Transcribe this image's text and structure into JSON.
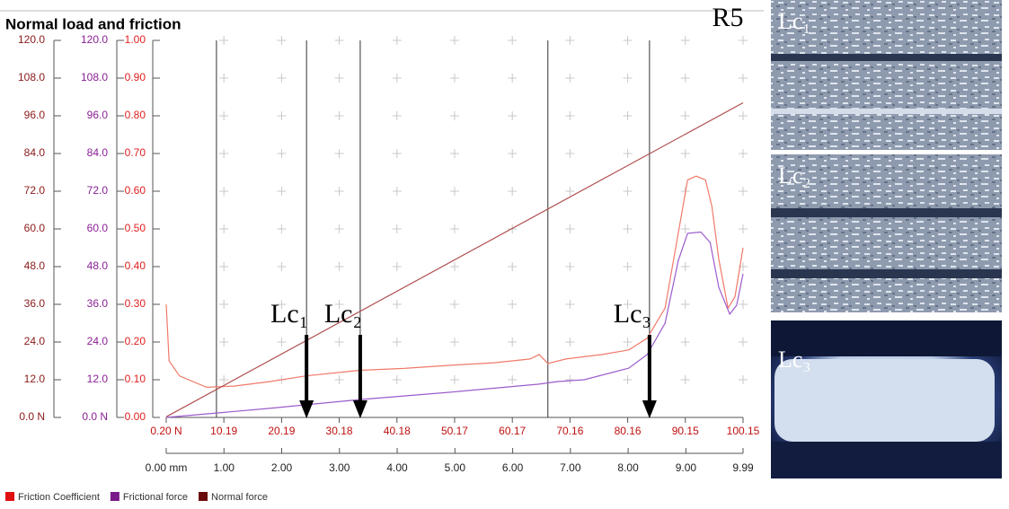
{
  "chart_data": {
    "type": "line",
    "title": "Normal load and friction",
    "sample_label": "R5",
    "xlim": [
      0,
      9.99
    ],
    "xticks": [
      {
        "value": 0,
        "label": "0.00 mm"
      },
      {
        "value": 1,
        "label": "1.00"
      },
      {
        "value": 2,
        "label": "2.00"
      },
      {
        "value": 3,
        "label": "3.00"
      },
      {
        "value": 4,
        "label": "4.00"
      },
      {
        "value": 5,
        "label": "5.00"
      },
      {
        "value": 6,
        "label": "6.00"
      },
      {
        "value": 7,
        "label": "7.00"
      },
      {
        "value": 8,
        "label": "8.00"
      },
      {
        "value": 9,
        "label": "9.00"
      },
      9.99
    ],
    "x2lim": [
      0.2,
      100.15
    ],
    "x2ticks": [
      {
        "value": 0.2,
        "label": "0.20 N"
      },
      10.19,
      20.19,
      30.18,
      40.18,
      50.17,
      60.17,
      70.16,
      80.16,
      90.15,
      100.15
    ],
    "ylim": [
      0,
      120
    ],
    "yticks": [
      {
        "value": 0,
        "label": "0.0 N"
      },
      {
        "value": 12,
        "label": "12.0"
      },
      {
        "value": 24,
        "label": "24.0"
      },
      {
        "value": 36,
        "label": "36.0"
      },
      {
        "value": 48,
        "label": "48.0"
      },
      {
        "value": 60,
        "label": "60.0"
      },
      {
        "value": 72,
        "label": "72.0"
      },
      {
        "value": 84,
        "label": "84.0"
      },
      {
        "value": 96,
        "label": "96.0"
      },
      {
        "value": 108,
        "label": "108.0"
      },
      {
        "value": 120,
        "label": "120.0"
      }
    ],
    "y_color": "#8b1a1a",
    "y2lim": [
      0,
      120
    ],
    "y2ticks": [
      {
        "value": 0,
        "label": "0.0 N"
      },
      {
        "value": 12,
        "label": "12.0"
      },
      {
        "value": 24,
        "label": "24.0"
      },
      {
        "value": 36,
        "label": "36.0"
      },
      {
        "value": 48,
        "label": "48.0"
      },
      {
        "value": 60,
        "label": "60.0"
      },
      {
        "value": 72,
        "label": "72.0"
      },
      {
        "value": 84,
        "label": "84.0"
      },
      {
        "value": 96,
        "label": "96.0"
      },
      {
        "value": 108,
        "label": "108.0"
      },
      {
        "value": 120,
        "label": "120.0"
      }
    ],
    "y2_color": "#8a1f96",
    "y3lim": [
      0,
      1
    ],
    "y3ticks": [
      {
        "value": 0,
        "label": "0.00"
      },
      {
        "value": 0.1,
        "label": "0.10"
      },
      {
        "value": 0.2,
        "label": "0.20"
      },
      {
        "value": 0.3,
        "label": "0.30"
      },
      {
        "value": 0.4,
        "label": "0.40"
      },
      {
        "value": 0.5,
        "label": "0.50"
      },
      {
        "value": 0.6,
        "label": "0.60"
      },
      {
        "value": 0.7,
        "label": "0.70"
      },
      {
        "value": 0.8,
        "label": "0.80"
      },
      {
        "value": 0.9,
        "label": "0.90"
      },
      {
        "value": 1,
        "label": "1.00"
      }
    ],
    "y3_color": "#e02020",
    "grid": "cross",
    "series": [
      {
        "name": "Friction Coefficient",
        "color": "#f07a6a",
        "legend_color": "#e01010",
        "axis": "y3",
        "x": [
          0,
          0.05,
          0.23,
          0.7,
          1.17,
          1.79,
          2.41,
          3.35,
          4.12,
          4.9,
          5.68,
          6.3,
          6.46,
          6.61,
          6.92,
          7.55,
          8.01,
          8.33,
          8.64,
          8.87,
          9.03,
          9.18,
          9.34,
          9.45,
          9.57,
          9.73,
          9.85,
          9.99
        ],
        "values": [
          0.3,
          0.15,
          0.11,
          0.08,
          0.083,
          0.095,
          0.11,
          0.125,
          0.13,
          0.138,
          0.145,
          0.155,
          0.167,
          0.143,
          0.155,
          0.167,
          0.179,
          0.21,
          0.29,
          0.49,
          0.63,
          0.64,
          0.63,
          0.56,
          0.42,
          0.29,
          0.32,
          0.45
        ]
      },
      {
        "name": "Frictional force",
        "color": "#9a5ccc",
        "legend_color": "#7a1a8a",
        "axis": "y2",
        "x": [
          0,
          1.79,
          3.35,
          4.9,
          6.46,
          6.77,
          7.24,
          8.01,
          8.33,
          8.64,
          8.87,
          9.03,
          9.26,
          9.42,
          9.57,
          9.76,
          9.88,
          9.99
        ],
        "values": [
          0,
          2.9,
          5.7,
          8.0,
          10.6,
          11.4,
          12.0,
          15.7,
          20.0,
          30.0,
          50.0,
          58.6,
          59.0,
          55.7,
          41.4,
          32.9,
          35.7,
          45.7
        ]
      },
      {
        "name": "Normal force",
        "color": "#b05050",
        "legend_color": "#6a0a0a",
        "axis": "y",
        "x": [
          0,
          9.99
        ],
        "values": [
          0.2,
          100.15
        ]
      }
    ],
    "vertical_lines": [
      0.87,
      2.43,
      3.36,
      6.61,
      8.37
    ],
    "annotations": [
      {
        "text": "Lc₁",
        "x": 2.43
      },
      {
        "text": "Lc₂",
        "x": 3.36
      },
      {
        "text": "Lc₃",
        "x": 8.37
      }
    ]
  },
  "images": [
    {
      "label": "Lc₁"
    },
    {
      "label": "Lc₂"
    },
    {
      "label": "Lc₃"
    }
  ]
}
